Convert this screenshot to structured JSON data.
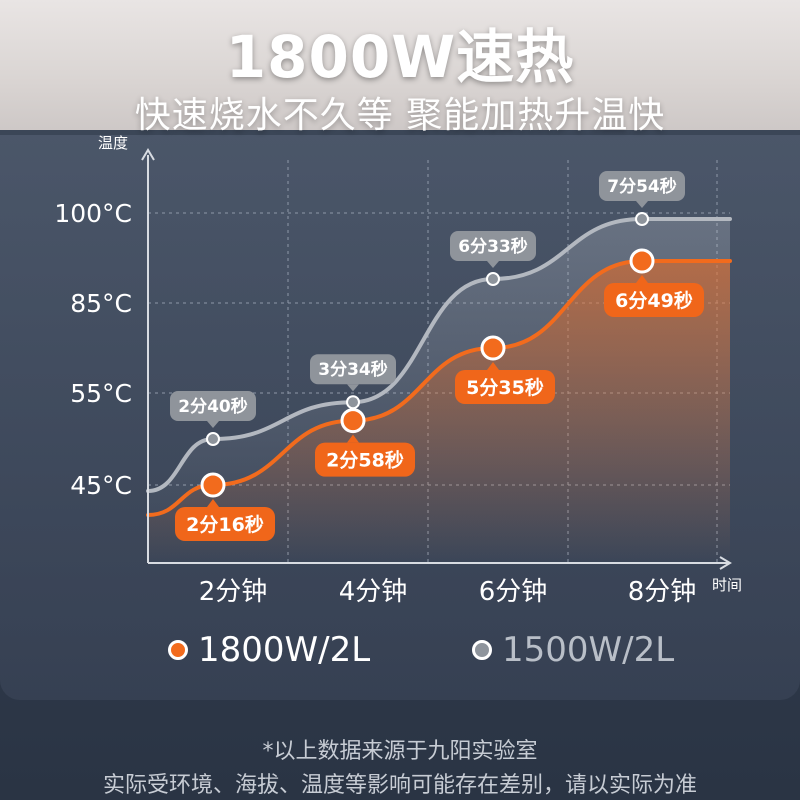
{
  "header": {
    "title": "1800W速热",
    "subtitle": "快速烧水不久等 聚能加热升温快"
  },
  "chart_data": {
    "type": "line",
    "ylabel": "温度",
    "xlabel": "时间",
    "y_ticks": [
      "100°C",
      "85°C",
      "55°C",
      "45°C"
    ],
    "x_ticks": [
      "2分钟",
      "4分钟",
      "6分钟",
      "8分钟"
    ],
    "grid": "dashed",
    "series": [
      {
        "name": "1800W/2L",
        "color": "#f26b1d",
        "points": [
          {
            "x": 2,
            "y": 45,
            "label": "2分16秒"
          },
          {
            "x": 4,
            "y": 52,
            "label": "2分58秒"
          },
          {
            "x": 6,
            "y": 70,
            "label": "5分35秒"
          },
          {
            "x": 8,
            "y": 92,
            "label": "6分49秒"
          }
        ]
      },
      {
        "name": "1500W/2L",
        "color": "#9aa0a8",
        "points": [
          {
            "x": 2,
            "y": 50,
            "label": "2分40秒"
          },
          {
            "x": 4,
            "y": 54,
            "label": "3分34秒"
          },
          {
            "x": 6,
            "y": 89,
            "label": "6分33秒"
          },
          {
            "x": 8,
            "y": 99,
            "label": "7分54秒"
          }
        ]
      }
    ]
  },
  "legend": {
    "items": [
      {
        "label": "1800W/2L",
        "color": "#f26b1d"
      },
      {
        "label": "1500W/2L",
        "color": "#8e949c"
      }
    ]
  },
  "footnotes": {
    "line1": "*以上数据来源于九阳实验室",
    "line2": "实际受环境、海拔、温度等影响可能存在差别，请以实际为准"
  }
}
